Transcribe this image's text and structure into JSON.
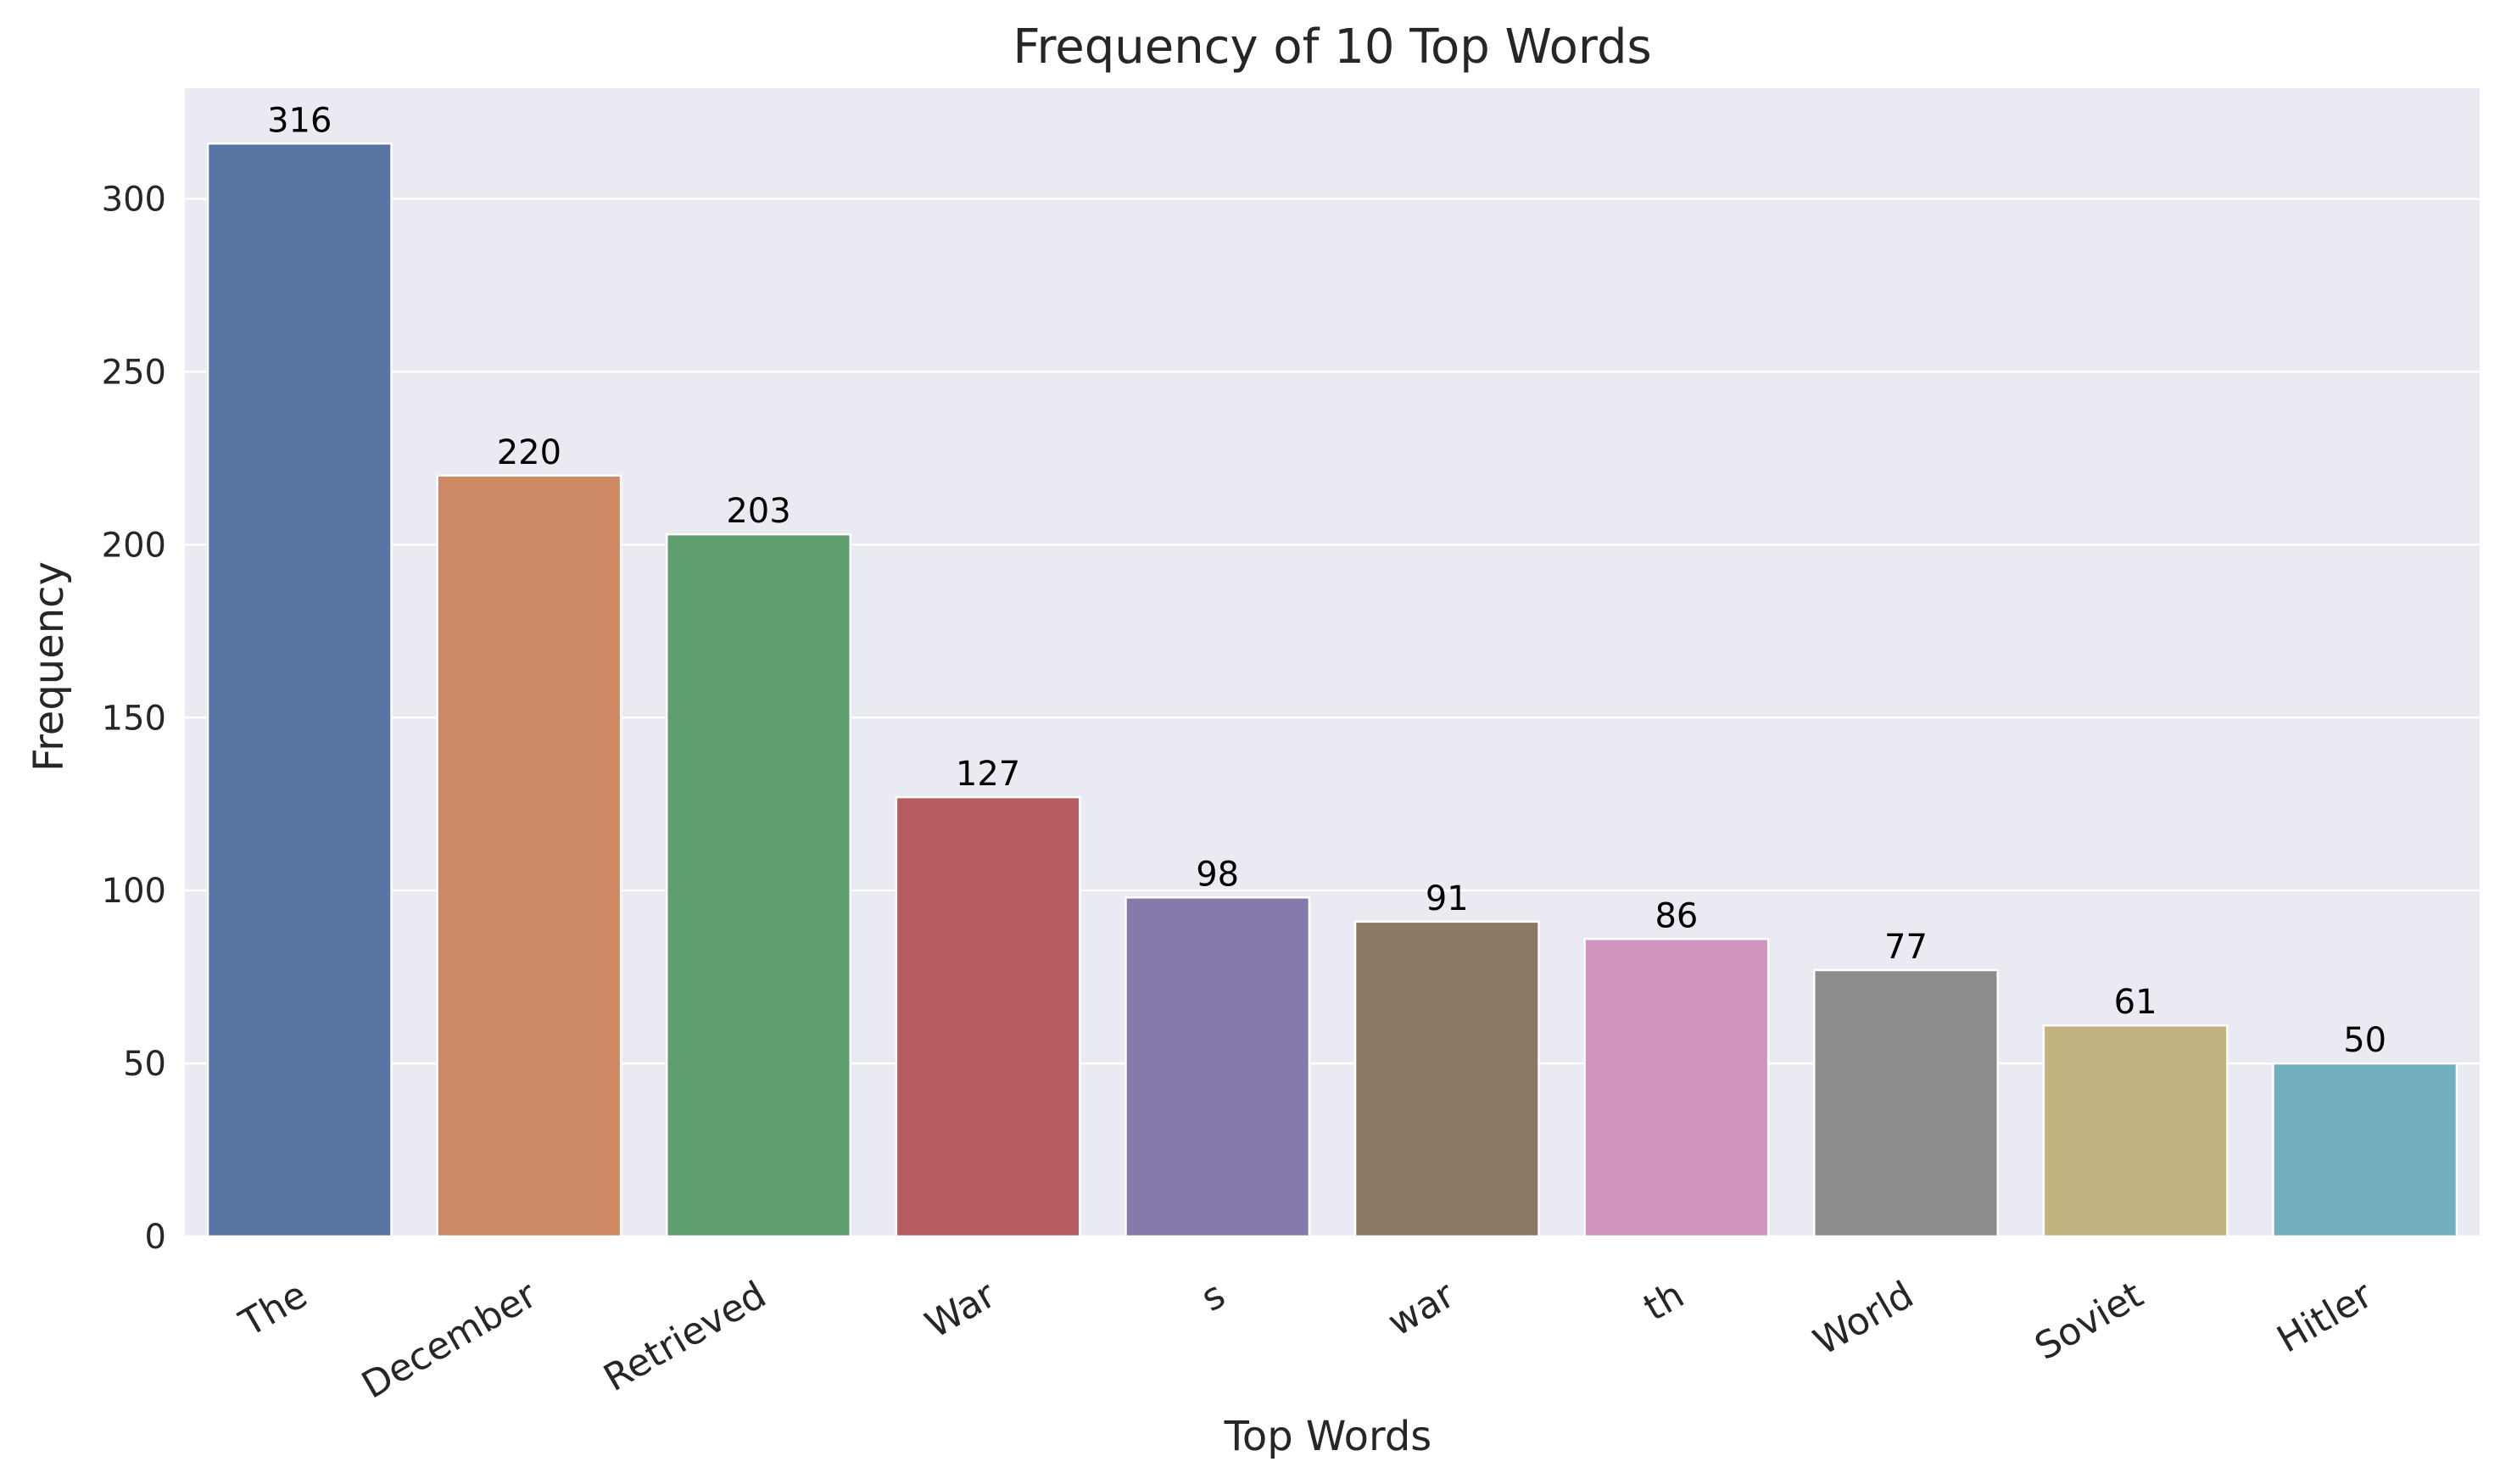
{
  "chart_data": {
    "type": "bar",
    "title": "Frequency of 10 Top Words",
    "xlabel": "Top Words",
    "ylabel": "Frequency",
    "categories": [
      "The",
      "December",
      "Retrieved",
      "War",
      "s",
      "war",
      "th",
      "World",
      "Soviet",
      "Hitler"
    ],
    "values": [
      316,
      220,
      203,
      127,
      98,
      91,
      86,
      77,
      61,
      50
    ],
    "colors": [
      "#5875a4",
      "#cc8963",
      "#5f9e6e",
      "#b55d60",
      "#857aab",
      "#8d7866",
      "#d095bf",
      "#8c8c8c",
      "#c1b37f",
      "#71aec0"
    ],
    "yticks": [
      0,
      50,
      100,
      150,
      200,
      250,
      300
    ],
    "ylim": [
      0,
      332
    ],
    "grid": true,
    "background": "#eaeaf2",
    "grid_color": "#ffffff",
    "legend": "none"
  }
}
